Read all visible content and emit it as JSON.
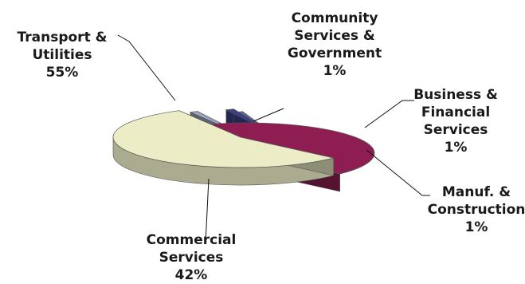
{
  "chart_data": {
    "type": "pie",
    "style": "3d-exploded",
    "title": "",
    "slices": [
      {
        "label": [
          "Transport &",
          "Utilities"
        ],
        "value": 55,
        "value_label": "55%",
        "color": "#ecedc6"
      },
      {
        "label": [
          "Community",
          "Services &",
          "Government"
        ],
        "value": 1,
        "value_label": "1%",
        "color": "#9aa5bf"
      },
      {
        "label": [
          "Business &",
          "Financial",
          "Services"
        ],
        "value": 1,
        "value_label": "1%",
        "color": "#3a3f86"
      },
      {
        "label": [
          "Manuf. &",
          "Construction"
        ],
        "value": 1,
        "value_label": "1%",
        "color": "#5a6b9a"
      },
      {
        "label": [
          "Commercial",
          "Services"
        ],
        "value": 42,
        "value_label": "42%",
        "color": "#8e1e52"
      }
    ]
  }
}
